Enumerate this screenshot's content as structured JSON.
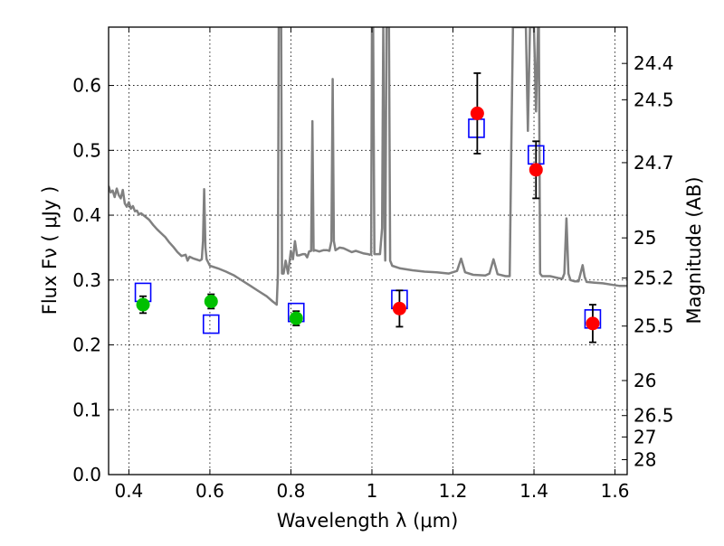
{
  "chart_data": {
    "type": "scatter",
    "title": "",
    "xlabel": "Wavelength  λ (μm)",
    "ylabel": "Flux  Fν  ( μJy )",
    "y2label": "Magnitude (AB)",
    "xlim": [
      0.35,
      1.63
    ],
    "ylim": [
      0.0,
      0.69
    ],
    "grid": true,
    "x_ticks": [
      {
        "value": 0.4,
        "label": "0.4"
      },
      {
        "value": 0.6,
        "label": "0.6"
      },
      {
        "value": 0.8,
        "label": "0.8"
      },
      {
        "value": 1.0,
        "label": "1"
      },
      {
        "value": 1.2,
        "label": "1.2"
      },
      {
        "value": 1.4,
        "label": "1.4"
      },
      {
        "value": 1.6,
        "label": "1.6"
      }
    ],
    "y_ticks": [
      {
        "value": 0.0,
        "label": "0.0"
      },
      {
        "value": 0.1,
        "label": "0.1"
      },
      {
        "value": 0.2,
        "label": "0.2"
      },
      {
        "value": 0.3,
        "label": "0.3"
      },
      {
        "value": 0.4,
        "label": "0.4"
      },
      {
        "value": 0.5,
        "label": "0.5"
      },
      {
        "value": 0.6,
        "label": "0.6"
      }
    ],
    "y2_ticks": [
      {
        "label": "24.4",
        "flux": 0.634
      },
      {
        "label": "24.5",
        "flux": 0.578
      },
      {
        "label": "24.7",
        "flux": 0.481
      },
      {
        "label": "25",
        "flux": 0.365
      },
      {
        "label": "25.2",
        "flux": 0.303
      },
      {
        "label": "25.5",
        "flux": 0.229
      },
      {
        "label": "26",
        "flux": 0.145
      },
      {
        "label": "26.5",
        "flux": 0.091
      },
      {
        "label": "27",
        "flux": 0.058
      },
      {
        "label": "28",
        "flux": 0.023
      }
    ],
    "series": [
      {
        "kind": "line",
        "color": "#808080",
        "points": [
          [
            0.35,
            0.445
          ],
          [
            0.355,
            0.435
          ],
          [
            0.36,
            0.438
          ],
          [
            0.365,
            0.428
          ],
          [
            0.37,
            0.441
          ],
          [
            0.375,
            0.431
          ],
          [
            0.38,
            0.426
          ],
          [
            0.385,
            0.439
          ],
          [
            0.39,
            0.418
          ],
          [
            0.395,
            0.413
          ],
          [
            0.4,
            0.42
          ],
          [
            0.405,
            0.41
          ],
          [
            0.41,
            0.414
          ],
          [
            0.415,
            0.406
          ],
          [
            0.42,
            0.407
          ],
          [
            0.425,
            0.401
          ],
          [
            0.43,
            0.403
          ],
          [
            0.44,
            0.398
          ],
          [
            0.45,
            0.393
          ],
          [
            0.46,
            0.385
          ],
          [
            0.47,
            0.378
          ],
          [
            0.48,
            0.372
          ],
          [
            0.49,
            0.366
          ],
          [
            0.5,
            0.358
          ],
          [
            0.51,
            0.351
          ],
          [
            0.52,
            0.343
          ],
          [
            0.53,
            0.337
          ],
          [
            0.54,
            0.339
          ],
          [
            0.545,
            0.33
          ],
          [
            0.55,
            0.336
          ],
          [
            0.56,
            0.333
          ],
          [
            0.57,
            0.331
          ],
          [
            0.575,
            0.33
          ],
          [
            0.58,
            0.332
          ],
          [
            0.583,
            0.36
          ],
          [
            0.586,
            0.44
          ],
          [
            0.589,
            0.35
          ],
          [
            0.592,
            0.332
          ],
          [
            0.6,
            0.322
          ],
          [
            0.62,
            0.318
          ],
          [
            0.64,
            0.313
          ],
          [
            0.66,
            0.307
          ],
          [
            0.68,
            0.299
          ],
          [
            0.7,
            0.291
          ],
          [
            0.72,
            0.283
          ],
          [
            0.74,
            0.275
          ],
          [
            0.755,
            0.267
          ],
          [
            0.765,
            0.262
          ],
          [
            0.768,
            0.31
          ],
          [
            0.77,
            0.69
          ],
          [
            0.776,
            0.69
          ],
          [
            0.778,
            0.31
          ],
          [
            0.782,
            0.31
          ],
          [
            0.787,
            0.33
          ],
          [
            0.793,
            0.31
          ],
          [
            0.797,
            0.33
          ],
          [
            0.8,
            0.345
          ],
          [
            0.805,
            0.332
          ],
          [
            0.81,
            0.36
          ],
          [
            0.815,
            0.338
          ],
          [
            0.82,
            0.338
          ],
          [
            0.83,
            0.34
          ],
          [
            0.835,
            0.34
          ],
          [
            0.84,
            0.335
          ],
          [
            0.845,
            0.344
          ],
          [
            0.85,
            0.345
          ],
          [
            0.853,
            0.545
          ],
          [
            0.856,
            0.345
          ],
          [
            0.86,
            0.346
          ],
          [
            0.87,
            0.344
          ],
          [
            0.88,
            0.346
          ],
          [
            0.89,
            0.346
          ],
          [
            0.895,
            0.345
          ],
          [
            0.9,
            0.36
          ],
          [
            0.903,
            0.61
          ],
          [
            0.906,
            0.36
          ],
          [
            0.91,
            0.346
          ],
          [
            0.92,
            0.35
          ],
          [
            0.93,
            0.349
          ],
          [
            0.94,
            0.346
          ],
          [
            0.95,
            0.343
          ],
          [
            0.96,
            0.345
          ],
          [
            0.97,
            0.343
          ],
          [
            0.98,
            0.341
          ],
          [
            0.99,
            0.34
          ],
          [
            0.995,
            0.339
          ],
          [
            0.998,
            0.34
          ],
          [
            1.0,
            0.69
          ],
          [
            1.003,
            0.69
          ],
          [
            1.006,
            0.34
          ],
          [
            1.01,
            0.34
          ],
          [
            1.02,
            0.34
          ],
          [
            1.025,
            0.38
          ],
          [
            1.028,
            0.69
          ],
          [
            1.031,
            0.38
          ],
          [
            1.033,
            0.33
          ],
          [
            1.036,
            0.69
          ],
          [
            1.042,
            0.69
          ],
          [
            1.045,
            0.33
          ],
          [
            1.05,
            0.322
          ],
          [
            1.07,
            0.318
          ],
          [
            1.1,
            0.315
          ],
          [
            1.13,
            0.313
          ],
          [
            1.16,
            0.312
          ],
          [
            1.19,
            0.31
          ],
          [
            1.21,
            0.314
          ],
          [
            1.22,
            0.333
          ],
          [
            1.23,
            0.312
          ],
          [
            1.25,
            0.308
          ],
          [
            1.28,
            0.307
          ],
          [
            1.29,
            0.31
          ],
          [
            1.3,
            0.332
          ],
          [
            1.31,
            0.309
          ],
          [
            1.33,
            0.306
          ],
          [
            1.34,
            0.306
          ],
          [
            1.345,
            0.55
          ],
          [
            1.348,
            0.69
          ],
          [
            1.37,
            0.69
          ],
          [
            1.38,
            0.69
          ],
          [
            1.385,
            0.53
          ],
          [
            1.39,
            0.69
          ],
          [
            1.4,
            0.69
          ],
          [
            1.405,
            0.56
          ],
          [
            1.41,
            0.69
          ],
          [
            1.412,
            0.69
          ],
          [
            1.415,
            0.31
          ],
          [
            1.42,
            0.306
          ],
          [
            1.44,
            0.306
          ],
          [
            1.46,
            0.303
          ],
          [
            1.47,
            0.302
          ],
          [
            1.475,
            0.31
          ],
          [
            1.48,
            0.395
          ],
          [
            1.485,
            0.31
          ],
          [
            1.49,
            0.3
          ],
          [
            1.5,
            0.298
          ],
          [
            1.51,
            0.298
          ],
          [
            1.52,
            0.323
          ],
          [
            1.525,
            0.305
          ],
          [
            1.53,
            0.297
          ],
          [
            1.55,
            0.296
          ],
          [
            1.57,
            0.295
          ],
          [
            1.59,
            0.293
          ],
          [
            1.61,
            0.291
          ],
          [
            1.63,
            0.291
          ]
        ]
      },
      {
        "kind": "open-square",
        "color": "#0000ff",
        "points": [
          [
            0.435,
            0.281
          ],
          [
            0.603,
            0.232
          ],
          [
            0.813,
            0.25
          ],
          [
            1.068,
            0.27
          ],
          [
            1.258,
            0.534
          ],
          [
            1.405,
            0.493
          ],
          [
            1.545,
            0.24
          ]
        ]
      },
      {
        "kind": "filled-circle",
        "color": "#00c000",
        "points": [
          {
            "x": 0.435,
            "y": 0.262,
            "err": 0.013
          },
          {
            "x": 0.603,
            "y": 0.267,
            "err": 0.011
          },
          {
            "x": 0.813,
            "y": 0.241,
            "err": 0.011
          }
        ]
      },
      {
        "kind": "filled-circle",
        "color": "#ff0000",
        "points": [
          {
            "x": 1.068,
            "y": 0.256,
            "err": 0.028
          },
          {
            "x": 1.26,
            "y": 0.557,
            "err": 0.062
          },
          {
            "x": 1.405,
            "y": 0.47,
            "err": 0.044
          },
          {
            "x": 1.545,
            "y": 0.233,
            "err": 0.029
          }
        ]
      }
    ]
  }
}
